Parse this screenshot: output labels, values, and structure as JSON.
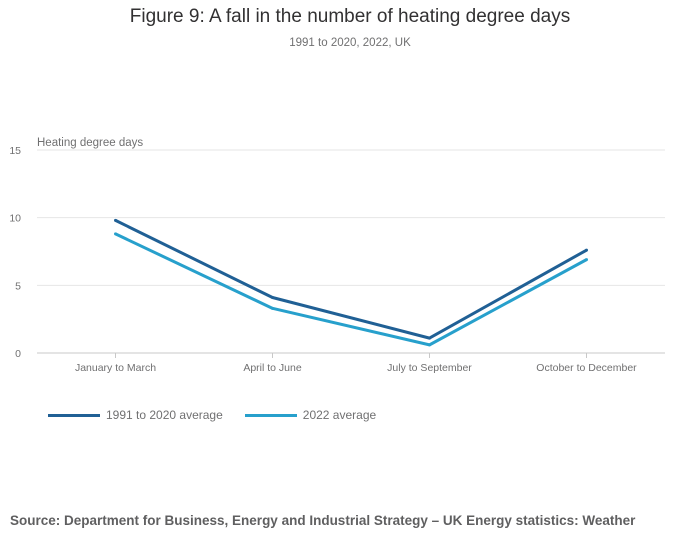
{
  "title": "Figure 9: A fall in the number of heating degree days",
  "subtitle": "1991 to 2020, 2022, UK",
  "source": "Source: Department for Business, Energy and Industrial Strategy – UK Energy statistics: Weather",
  "colors": {
    "grid": "#e6e6e6",
    "axis": "#c8c8c8",
    "text": "#707071"
  },
  "chart_data": {
    "type": "line",
    "title": "Figure 9: A fall in the number of heating degree days",
    "subtitle": "1991 to 2020, 2022, UK",
    "xlabel": "",
    "ylabel": "Heating degree days",
    "categories": [
      "January to March",
      "April to June",
      "July to September",
      "October to December"
    ],
    "ylim": [
      0,
      15
    ],
    "yticks": [
      0,
      5,
      10,
      15
    ],
    "grid": true,
    "legend_position": "bottom-left",
    "series": [
      {
        "name": "1991 to 2020 average",
        "color": "#206095",
        "values": [
          9.8,
          4.1,
          1.1,
          7.6
        ]
      },
      {
        "name": "2022 average",
        "color": "#27a0cc",
        "values": [
          8.8,
          3.3,
          0.6,
          6.9
        ]
      }
    ]
  }
}
